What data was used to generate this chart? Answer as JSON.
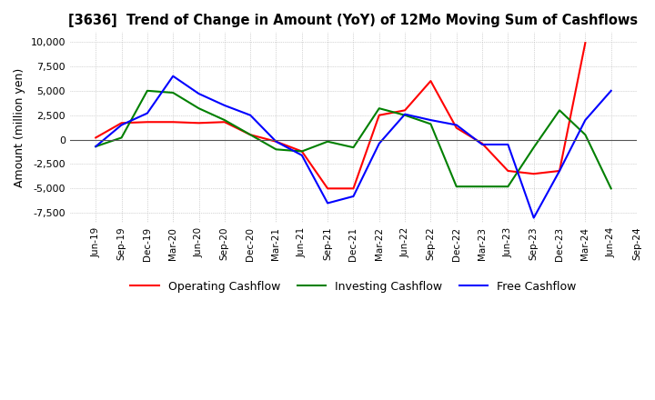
{
  "title": "[3636]  Trend of Change in Amount (YoY) of 12Mo Moving Sum of Cashflows",
  "ylabel": "Amount (million yen)",
  "ylim": [
    -8500,
    11000
  ],
  "yticks": [
    -7500,
    -5000,
    -2500,
    0,
    2500,
    5000,
    7500,
    10000
  ],
  "x_labels": [
    "Jun-19",
    "Sep-19",
    "Dec-19",
    "Mar-20",
    "Jun-20",
    "Sep-20",
    "Dec-20",
    "Mar-21",
    "Jun-21",
    "Sep-21",
    "Dec-21",
    "Mar-22",
    "Jun-22",
    "Sep-22",
    "Dec-22",
    "Mar-23",
    "Jun-23",
    "Sep-23",
    "Dec-23",
    "Mar-24",
    "Jun-24",
    "Sep-24"
  ],
  "operating": [
    200,
    1700,
    1800,
    1800,
    1700,
    1800,
    500,
    -200,
    -1200,
    -5000,
    -5000,
    2500,
    3000,
    6000,
    1200,
    -400,
    -3200,
    -3500,
    -3200,
    9900,
    null,
    null
  ],
  "investing": [
    -700,
    200,
    5000,
    4800,
    3200,
    2000,
    500,
    -1000,
    -1200,
    -200,
    -800,
    3200,
    2500,
    1600,
    -4800,
    -4800,
    -4800,
    -800,
    3000,
    500,
    -5000,
    null
  ],
  "free": [
    -700,
    1500,
    2700,
    6500,
    4700,
    3500,
    2500,
    -200,
    -1600,
    -6500,
    -5800,
    -400,
    2600,
    2000,
    1500,
    -500,
    -500,
    -8000,
    -3200,
    2000,
    5000,
    null
  ],
  "colors": {
    "operating": "#ff0000",
    "investing": "#008000",
    "free": "#0000ff"
  },
  "legend_labels": [
    "Operating Cashflow",
    "Investing Cashflow",
    "Free Cashflow"
  ],
  "background_color": "#ffffff",
  "grid_color": "#b0b0b0",
  "grid_style": "dotted"
}
